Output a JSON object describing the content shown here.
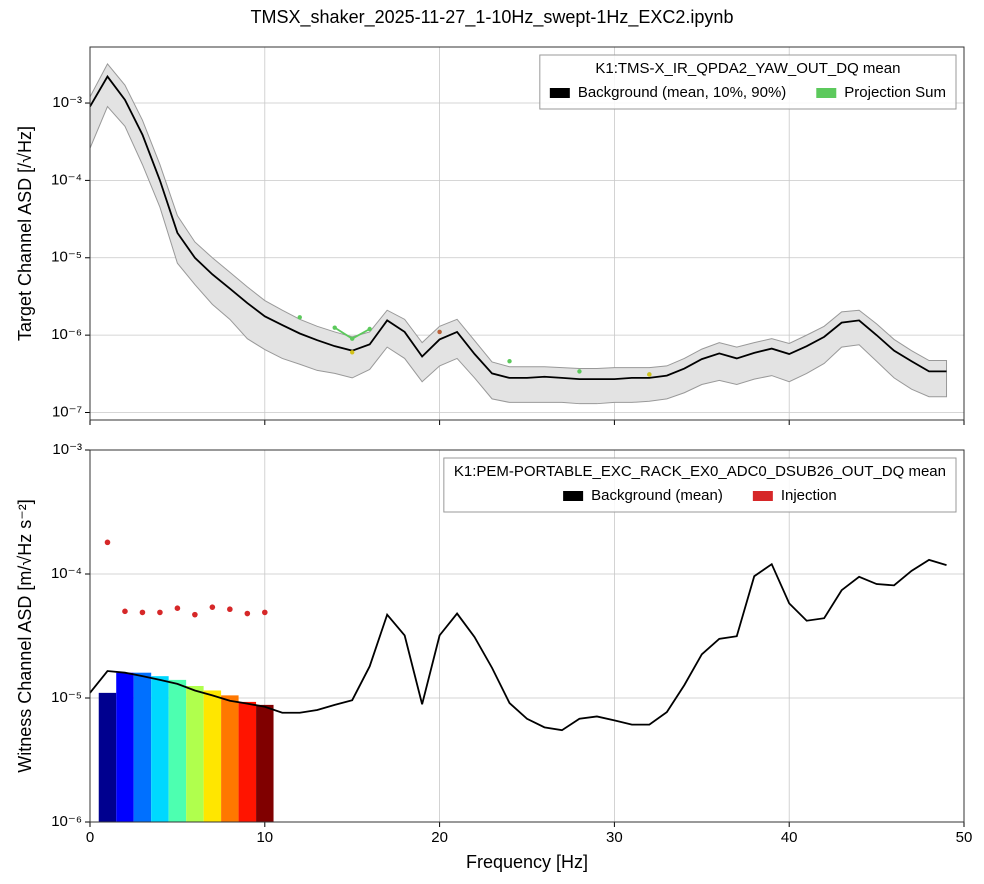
{
  "title": "TMSX_shaker_2025-11-27_1-10Hz_swept-1Hz_EXC2.ipynb",
  "chart_data": [
    {
      "type": "line",
      "ylabel": "Target Channel ASD [/√Hz]",
      "xlim": [
        0,
        50
      ],
      "xticks": [
        0,
        10,
        20,
        30,
        40,
        50
      ],
      "xticklabels": false,
      "ylim": [
        8e-08,
        0.0053
      ],
      "log_y": true,
      "grid": true,
      "yticks": [
        {
          "value": 1e-07,
          "label": "10⁻⁷"
        },
        {
          "value": 1e-06,
          "label": "10⁻⁶"
        },
        {
          "value": 1e-05,
          "label": "10⁻⁵"
        },
        {
          "value": 0.0001,
          "label": "10⁻⁴"
        },
        {
          "value": 0.001,
          "label": "10⁻³"
        }
      ],
      "legend_title": "K1:TMS-X_IR_QPDA2_YAW_OUT_DQ mean",
      "legend": "upper right",
      "series": [
        {
          "type": "band",
          "name": "Background (mean, 10%, 90%)",
          "color": "#000000",
          "band_color": "#e3e3e3",
          "x": [
            0,
            1,
            2,
            3,
            4,
            5,
            6,
            7,
            8,
            9,
            10,
            11,
            12,
            13,
            14,
            15,
            16,
            17,
            18,
            19,
            20,
            21,
            22,
            23,
            24,
            25,
            26,
            27,
            28,
            29,
            30,
            31,
            32,
            33,
            34,
            35,
            36,
            37,
            38,
            39,
            40,
            41,
            42,
            43,
            44,
            45,
            46,
            47,
            48,
            49
          ],
          "values": [
            0.0009,
            0.0022,
            0.0011,
            0.00039,
            0.0001,
            2.1e-05,
            1e-05,
            6.1e-06,
            4e-06,
            2.6e-06,
            1.75e-06,
            1.35e-06,
            1.05e-06,
            8.6e-07,
            7.2e-07,
            6.3e-07,
            7.6e-07,
            1.55e-06,
            1.1e-06,
            5.3e-07,
            8.8e-07,
            1.1e-06,
            5.7e-07,
            3.2e-07,
            2.8e-07,
            2.8e-07,
            2.9e-07,
            2.8e-07,
            2.7e-07,
            2.7e-07,
            2.7e-07,
            2.8e-07,
            2.8e-07,
            3e-07,
            3.7e-07,
            4.9e-07,
            5.8e-07,
            5e-07,
            5.9e-07,
            6.7e-07,
            5.7e-07,
            7.2e-07,
            9.5e-07,
            1.45e-06,
            1.55e-06,
            1e-06,
            6.3e-07,
            4.6e-07,
            3.4e-07,
            3.4e-07
          ],
          "lower": [
            0.00026,
            0.0009,
            0.0005,
            0.00016,
            4.5e-05,
            8.5e-06,
            4.5e-06,
            2.5e-06,
            1.6e-06,
            9e-07,
            6.5e-07,
            5e-07,
            4.2e-07,
            3.5e-07,
            3.2e-07,
            2.8e-07,
            3.6e-07,
            7e-07,
            5e-07,
            2.5e-07,
            4e-07,
            5e-07,
            2.8e-07,
            1.5e-07,
            1.35e-07,
            1.35e-07,
            1.35e-07,
            1.35e-07,
            1.3e-07,
            1.3e-07,
            1.35e-07,
            1.35e-07,
            1.4e-07,
            1.5e-07,
            1.8e-07,
            2.3e-07,
            2.6e-07,
            2.3e-07,
            2.7e-07,
            3e-07,
            2.5e-07,
            3.2e-07,
            4.3e-07,
            7e-07,
            7.5e-07,
            4.6e-07,
            2.8e-07,
            2e-07,
            1.6e-07,
            1.6e-07
          ],
          "upper": [
            0.0012,
            0.0032,
            0.0017,
            0.0006,
            0.00016,
            3.5e-05,
            1.6e-05,
            1e-05,
            6.5e-06,
            4.2e-06,
            2.8e-06,
            2.1e-06,
            1.6e-06,
            1.3e-06,
            1.1e-06,
            9.5e-07,
            1.1e-06,
            2.1e-06,
            1.6e-06,
            8e-07,
            1.3e-06,
            1.6e-06,
            8.5e-07,
            4.5e-07,
            3.9e-07,
            3.9e-07,
            3.9e-07,
            3.8e-07,
            3.7e-07,
            3.7e-07,
            3.8e-07,
            3.8e-07,
            3.8e-07,
            4e-07,
            5e-07,
            6.6e-07,
            8e-07,
            7e-07,
            8e-07,
            9e-07,
            7.8e-07,
            1e-06,
            1.3e-06,
            2e-06,
            2.1e-06,
            1.4e-06,
            8.8e-07,
            6.3e-07,
            4.7e-07,
            4.7e-07
          ]
        },
        {
          "type": "line",
          "markers": true,
          "name": "Projection Sum",
          "color": "#5cc95c",
          "x": [
            12,
            13,
            14,
            15,
            16,
            17,
            20,
            21,
            24,
            25,
            28,
            29,
            32
          ],
          "values": [
            1.7e-06,
            null,
            1.25e-06,
            9e-07,
            1.2e-06,
            null,
            1.1e-06,
            null,
            4.6e-07,
            null,
            3.4e-07,
            null,
            3.1e-07
          ]
        },
        {
          "type": "scatter",
          "color": "#d4c21a",
          "x": [
            15,
            32
          ],
          "values": [
            6e-07,
            3.1e-07
          ]
        },
        {
          "type": "scatter",
          "color": "#c0603a",
          "x": [
            20
          ],
          "values": [
            1.1e-06
          ]
        }
      ]
    },
    {
      "type": "line",
      "ylabel": "Witness Channel ASD [m/√Hz s⁻²]",
      "xlabel": "Frequency [Hz]",
      "xlim": [
        0,
        50
      ],
      "xticks": [
        0,
        10,
        20,
        30,
        40,
        50
      ],
      "xticklabels": true,
      "ylim": [
        1e-06,
        0.001
      ],
      "log_y": true,
      "grid": true,
      "yticks": [
        {
          "value": 1e-06,
          "label": "10⁻⁶"
        },
        {
          "value": 1e-05,
          "label": "10⁻⁵"
        },
        {
          "value": 0.0001,
          "label": "10⁻⁴"
        },
        {
          "value": 0.001,
          "label": "10⁻³"
        }
      ],
      "legend_title": "K1:PEM-PORTABLE_EXC_RACK_EX0_ADC0_DSUB26_OUT_DQ mean",
      "legend": "upper right",
      "series": [
        {
          "type": "bar",
          "x": [
            1,
            2,
            3,
            4,
            5,
            6,
            7,
            8,
            9,
            10
          ],
          "values": [
            1.1e-05,
            1.6e-05,
            1.6e-05,
            1.5e-05,
            1.4e-05,
            1.25e-05,
            1.15e-05,
            1.05e-05,
            9.3e-06,
            8.8e-06
          ],
          "colors": [
            "#00008f",
            "#0000ff",
            "#0070ff",
            "#00d8ff",
            "#4dffb0",
            "#b0ff4d",
            "#ffe600",
            "#ff7800",
            "#ff1400",
            "#800000"
          ]
        },
        {
          "type": "line",
          "name": "Background (mean)",
          "color": "#000000",
          "x": [
            0,
            1,
            2,
            3,
            4,
            5,
            6,
            7,
            8,
            9,
            10,
            11,
            12,
            13,
            14,
            15,
            16,
            17,
            18,
            19,
            20,
            21,
            22,
            23,
            24,
            25,
            26,
            27,
            28,
            29,
            30,
            31,
            32,
            33,
            34,
            35,
            36,
            37,
            38,
            39,
            40,
            41,
            42,
            43,
            44,
            45,
            46,
            47,
            48,
            49
          ],
          "values": [
            1.1e-05,
            1.65e-05,
            1.6e-05,
            1.5e-05,
            1.4e-05,
            1.3e-05,
            1.15e-05,
            1.05e-05,
            9.5e-06,
            9e-06,
            8.5e-06,
            7.6e-06,
            7.6e-06,
            8e-06,
            8.8e-06,
            9.6e-06,
            1.8e-05,
            4.7e-05,
            3.2e-05,
            8.9e-06,
            3.2e-05,
            4.8e-05,
            3.1e-05,
            1.75e-05,
            9.1e-06,
            6.8e-06,
            5.8e-06,
            5.5e-06,
            6.8e-06,
            7.1e-06,
            6.6e-06,
            6.1e-06,
            6.1e-06,
            7.7e-06,
            1.27e-05,
            2.25e-05,
            3e-05,
            3.15e-05,
            9.6e-05,
            0.00012,
            5.8e-05,
            4.2e-05,
            4.4e-05,
            7.4e-05,
            9.5e-05,
            8.3e-05,
            8.1e-05,
            0.000106,
            0.00013,
            0.000118
          ]
        },
        {
          "type": "scatter",
          "name": "Injection",
          "color": "#d62728",
          "x": [
            1,
            2,
            3,
            4,
            5,
            6,
            7,
            8,
            9,
            10
          ],
          "values": [
            0.00018,
            5e-05,
            4.9e-05,
            4.9e-05,
            5.3e-05,
            4.7e-05,
            5.4e-05,
            5.2e-05,
            4.8e-05,
            4.9e-05
          ]
        }
      ]
    }
  ]
}
